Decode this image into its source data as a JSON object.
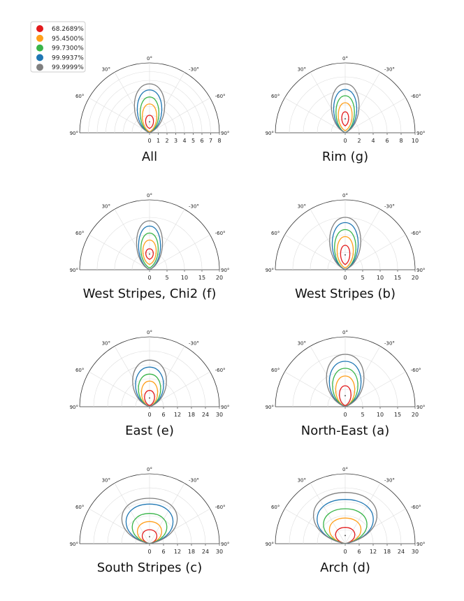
{
  "legend": {
    "entries": [
      {
        "label": "68.2689%",
        "color": "#e31a1c"
      },
      {
        "label": "95.4500%",
        "color": "#ff9f1a"
      },
      {
        "label": "99.7300%",
        "color": "#3ab54a"
      },
      {
        "label": "99.9937%",
        "color": "#1f77b4"
      },
      {
        "label": "99.9999%",
        "color": "#808080"
      }
    ]
  },
  "chart_data": [
    {
      "type": "polar-contour",
      "caption": "All",
      "angle_labels": [
        "0°",
        "30°",
        "-30°",
        "60°",
        "-60°",
        "90°",
        "90°"
      ],
      "radial_ticks": [
        0,
        1,
        2,
        3,
        4,
        5,
        6,
        7,
        8
      ],
      "rmax": 8,
      "series": [
        {
          "level": "68.2689%",
          "color": "#e31a1c",
          "top": 2.0,
          "bottom": 0.5,
          "width": 0.55
        },
        {
          "level": "95.4500%",
          "color": "#ff9f1a",
          "top": 3.3,
          "bottom": 0.1,
          "width": 1.0
        },
        {
          "level": "99.7300%",
          "color": "#3ab54a",
          "top": 4.1,
          "bottom": 0.0,
          "width": 1.3
        },
        {
          "level": "99.9937%",
          "color": "#1f77b4",
          "top": 4.9,
          "bottom": 0.0,
          "width": 1.7
        },
        {
          "level": "99.9999%",
          "color": "#808080",
          "top": 5.6,
          "bottom": 0.0,
          "width": 2.1
        }
      ]
    },
    {
      "type": "polar-contour",
      "caption": "Rim (g)",
      "angle_labels": [
        "0°",
        "30°",
        "-30°",
        "60°",
        "-60°",
        "90°",
        "90°"
      ],
      "radial_ticks": [
        0,
        2,
        4,
        6,
        8,
        10
      ],
      "rmax": 10,
      "series": [
        {
          "level": "68.2689%",
          "color": "#e31a1c",
          "top": 3.0,
          "bottom": 1.0,
          "width": 0.6
        },
        {
          "level": "95.4500%",
          "color": "#ff9f1a",
          "top": 4.3,
          "bottom": 0.3,
          "width": 1.2
        },
        {
          "level": "99.7300%",
          "color": "#3ab54a",
          "top": 5.3,
          "bottom": 0.0,
          "width": 1.6
        },
        {
          "level": "99.9937%",
          "color": "#1f77b4",
          "top": 6.2,
          "bottom": 0.0,
          "width": 2.0
        },
        {
          "level": "99.9999%",
          "color": "#808080",
          "top": 7.0,
          "bottom": 0.0,
          "width": 2.4
        }
      ]
    },
    {
      "type": "polar-contour",
      "caption": "West Stripes, Chi2 (f)",
      "angle_labels": [
        "0°",
        "30°",
        "-30°",
        "60°",
        "-60°",
        "90°",
        "90°"
      ],
      "radial_ticks": [
        0,
        5,
        10,
        15,
        20
      ],
      "rmax": 20,
      "series": [
        {
          "level": "68.2689%",
          "color": "#e31a1c",
          "top": 6.0,
          "bottom": 3.0,
          "width": 1.3
        },
        {
          "level": "95.4500%",
          "color": "#ff9f1a",
          "top": 8.5,
          "bottom": 1.5,
          "width": 2.3
        },
        {
          "level": "99.7300%",
          "color": "#3ab54a",
          "top": 10.5,
          "bottom": 0.5,
          "width": 3.0
        },
        {
          "level": "99.9937%",
          "color": "#1f77b4",
          "top": 12.5,
          "bottom": 0.0,
          "width": 3.8
        },
        {
          "level": "99.9999%",
          "color": "#808080",
          "top": 14.0,
          "bottom": 0.0,
          "width": 4.5
        }
      ]
    },
    {
      "type": "polar-contour",
      "caption": "West Stripes (b)",
      "angle_labels": [
        "0°",
        "30°",
        "-30°",
        "60°",
        "-60°",
        "90°",
        "90°"
      ],
      "radial_ticks": [
        0,
        5,
        10,
        15,
        20
      ],
      "rmax": 20,
      "series": [
        {
          "level": "68.2689%",
          "color": "#e31a1c",
          "top": 7.0,
          "bottom": 1.5,
          "width": 1.6
        },
        {
          "level": "95.4500%",
          "color": "#ff9f1a",
          "top": 9.5,
          "bottom": 0.5,
          "width": 2.8
        },
        {
          "level": "99.7300%",
          "color": "#3ab54a",
          "top": 11.5,
          "bottom": 0.0,
          "width": 3.7
        },
        {
          "level": "99.9937%",
          "color": "#1f77b4",
          "top": 13.5,
          "bottom": 0.0,
          "width": 4.5
        },
        {
          "level": "99.9999%",
          "color": "#808080",
          "top": 15.0,
          "bottom": 0.0,
          "width": 5.4
        }
      ]
    },
    {
      "type": "polar-contour",
      "caption": "East (e)",
      "angle_labels": [
        "0°",
        "30°",
        "-30°",
        "60°",
        "-60°",
        "90°",
        "90°"
      ],
      "radial_ticks": [
        0,
        6,
        12,
        18,
        24,
        30
      ],
      "rmax": 30,
      "series": [
        {
          "level": "68.2689%",
          "color": "#e31a1c",
          "top": 7.0,
          "bottom": 0.5,
          "width": 2.6
        },
        {
          "level": "95.4500%",
          "color": "#ff9f1a",
          "top": 11.0,
          "bottom": 0.0,
          "width": 4.2
        },
        {
          "level": "99.7300%",
          "color": "#3ab54a",
          "top": 14.0,
          "bottom": 0.0,
          "width": 5.8
        },
        {
          "level": "99.9937%",
          "color": "#1f77b4",
          "top": 17.0,
          "bottom": 0.0,
          "width": 7.3
        },
        {
          "level": "99.9999%",
          "color": "#808080",
          "top": 20.0,
          "bottom": 0.0,
          "width": 8.8
        }
      ]
    },
    {
      "type": "polar-contour",
      "caption": "North-East (a)",
      "angle_labels": [
        "0°",
        "30°",
        "-30°",
        "60°",
        "-60°",
        "90°",
        "90°"
      ],
      "radial_ticks": [
        0,
        5,
        10,
        15,
        20
      ],
      "rmax": 20,
      "series": [
        {
          "level": "68.2689%",
          "color": "#e31a1c",
          "top": 6.0,
          "bottom": 0.3,
          "width": 2.0
        },
        {
          "level": "95.4500%",
          "color": "#ff9f1a",
          "top": 8.8,
          "bottom": 0.0,
          "width": 3.3
        },
        {
          "level": "99.7300%",
          "color": "#3ab54a",
          "top": 11.0,
          "bottom": 0.0,
          "width": 4.4
        },
        {
          "level": "99.9937%",
          "color": "#1f77b4",
          "top": 13.0,
          "bottom": 0.0,
          "width": 5.5
        },
        {
          "level": "99.9999%",
          "color": "#808080",
          "top": 15.0,
          "bottom": 0.0,
          "width": 6.5
        }
      ]
    },
    {
      "type": "polar-contour",
      "caption": "South Stripes (c)",
      "angle_labels": [
        "0°",
        "30°",
        "-30°",
        "60°",
        "-60°",
        "90°",
        "90°"
      ],
      "radial_ticks": [
        0,
        6,
        12,
        18,
        24,
        30
      ],
      "rmax": 30,
      "series": [
        {
          "level": "68.2689%",
          "color": "#e31a1c",
          "top": 6.0,
          "bottom": 0.0,
          "width": 3.8
        },
        {
          "level": "95.4500%",
          "color": "#ff9f1a",
          "top": 9.5,
          "bottom": 0.0,
          "width": 6.3
        },
        {
          "level": "99.7300%",
          "color": "#3ab54a",
          "top": 13.0,
          "bottom": 0.0,
          "width": 9.0
        },
        {
          "level": "99.9937%",
          "color": "#1f77b4",
          "top": 17.0,
          "bottom": 0.0,
          "width": 12.2
        },
        {
          "level": "99.9999%",
          "color": "#808080",
          "top": 19.5,
          "bottom": 0.0,
          "width": 14.4
        }
      ]
    },
    {
      "type": "polar-contour",
      "caption": "Arch (d)",
      "angle_labels": [
        "0°",
        "30°",
        "-30°",
        "60°",
        "-60°",
        "90°",
        "90°"
      ],
      "radial_ticks": [
        0,
        6,
        12,
        18,
        24,
        30
      ],
      "rmax": 30,
      "series": [
        {
          "level": "68.2689%",
          "color": "#e31a1c",
          "top": 7.0,
          "bottom": 0.0,
          "width": 5.0
        },
        {
          "level": "95.4500%",
          "color": "#ff9f1a",
          "top": 11.0,
          "bottom": 0.0,
          "width": 8.2
        },
        {
          "level": "99.7300%",
          "color": "#3ab54a",
          "top": 15.0,
          "bottom": 0.0,
          "width": 11.3
        },
        {
          "level": "99.9937%",
          "color": "#1f77b4",
          "top": 19.0,
          "bottom": 0.0,
          "width": 14.6
        },
        {
          "level": "99.9999%",
          "color": "#808080",
          "top": 22.0,
          "bottom": 0.0,
          "width": 16.5
        }
      ]
    }
  ]
}
